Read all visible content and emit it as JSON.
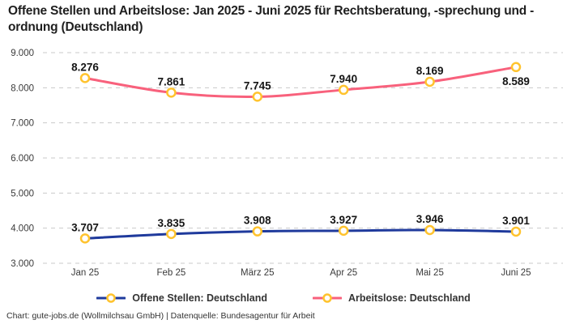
{
  "title": "Offene Stellen und Arbeitslose: Jan 2025 - Juni 2025 für Rechtsberatung, -sprechung und -ordnung (Deutschland)",
  "footer": "Chart: gute-jobs.de (Wollmilchsau GmbH) | Datenquelle: Bundesagentur für Arbeit",
  "colors": {
    "open_positions": "#1f3a9c",
    "unemployed": "#f8617c",
    "marker_ring": "#ffc32e",
    "marker_fill": "#ffffff",
    "grid": "#c9c9c9",
    "axis_text": "#3a3a3a",
    "data_label": "#151515"
  },
  "chart_data": {
    "type": "line",
    "categories": [
      "Jan 25",
      "Feb 25",
      "März 25",
      "Apr 25",
      "Mai 25",
      "Juni 25"
    ],
    "series": [
      {
        "name": "Offene Stellen: Deutschland",
        "color_key": "open_positions",
        "values": [
          3707,
          3835,
          3908,
          3927,
          3946,
          3901
        ],
        "labels": [
          "3.707",
          "3.835",
          "3.908",
          "3.927",
          "3.946",
          "3.901"
        ],
        "label_positions": [
          "above",
          "above",
          "above",
          "above",
          "above",
          "above"
        ]
      },
      {
        "name": "Arbeitslose: Deutschland",
        "color_key": "unemployed",
        "values": [
          8276,
          7861,
          7745,
          7940,
          8169,
          8589
        ],
        "labels": [
          "8.276",
          "7.861",
          "7.745",
          "7.940",
          "8.169",
          "8.589"
        ],
        "label_positions": [
          "above",
          "above",
          "above",
          "above",
          "above",
          "below"
        ]
      }
    ],
    "ylim": [
      3000,
      9000
    ],
    "ytick_step": 1000,
    "ytick_labels": [
      "3.000",
      "4.000",
      "5.000",
      "6.000",
      "7.000",
      "8.000",
      "9.000"
    ],
    "grid": true,
    "grid_style": "dashed",
    "legend_position": "bottom"
  }
}
